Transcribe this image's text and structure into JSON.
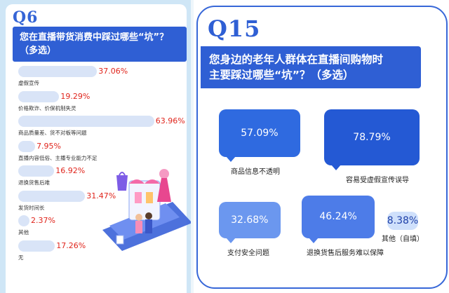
{
  "chart_data": [
    {
      "type": "bar",
      "label": "Q6",
      "title": "您在直播带货消费中踩过哪些“坑”？（多选）",
      "unit": "%",
      "categories": [
        "虚假宣传",
        "价格欺诈、价保机制失灵",
        "商品质量差、货不对板等问题",
        "直播内容低俗、主播专业能力不足",
        "退换货售后难",
        "发货时间长",
        "其他",
        "无"
      ],
      "values": [
        37.06,
        19.29,
        63.96,
        7.95,
        16.92,
        31.47,
        2.37,
        17.26
      ],
      "value_labels": [
        "37.06%",
        "19.29%",
        "63.96%",
        "7.95%",
        "16.92%",
        "31.47%",
        "2.37%",
        "17.26%"
      ]
    },
    {
      "type": "bar",
      "label": "Q15",
      "title": "您身边的老年人群体在直播间购物时主要踩过哪些“坑”？（多选）",
      "title_line1": "您身边的老年人群体在直播间购物时",
      "title_line2": "主要踩过哪些“坑”？（多选）",
      "unit": "%",
      "categories": [
        "商品信息不透明",
        "容易受虚假宣传误导",
        "支付安全问题",
        "退换货售后服务难以保障",
        "其他（自填）"
      ],
      "values": [
        57.09,
        78.79,
        32.68,
        46.24,
        8.38
      ],
      "value_labels": [
        "57.09%",
        "78.79%",
        "32.68%",
        "46.24%",
        "8.38%"
      ]
    }
  ],
  "colors": {
    "primary": "#2f5fd4",
    "value_red": "#e0251c",
    "bar_track": "#d9e4f7"
  }
}
